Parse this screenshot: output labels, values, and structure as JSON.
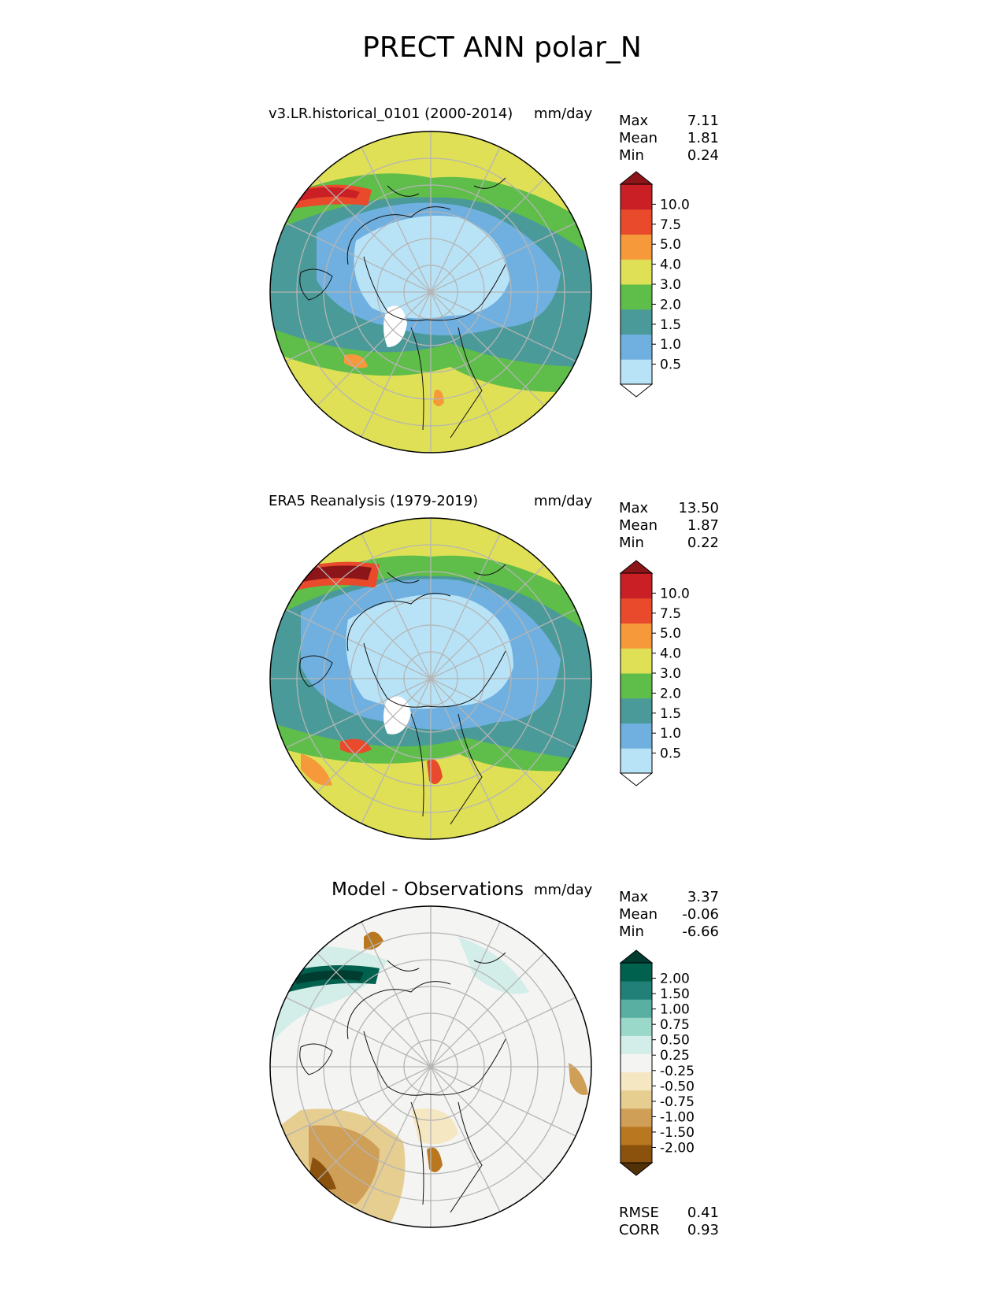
{
  "figure_title": "PRECT ANN polar_N",
  "colors": {
    "prect": [
      "#ffffff",
      "#b8e3f7",
      "#6fb0e0",
      "#4a9a9a",
      "#5fbd4a",
      "#dfe055",
      "#f6993b",
      "#e84a2b",
      "#c91f25",
      "#8c1519"
    ],
    "diff": [
      "#523109",
      "#8a520d",
      "#b9781f",
      "#cf9f58",
      "#e6cd90",
      "#f6e7c3",
      "#f4f4f2",
      "#d3ede8",
      "#9ad8ca",
      "#59b0a2",
      "#218077",
      "#00614f",
      "#003c30"
    ],
    "ocean_light": "#b8e3f7",
    "neutral": "#f4f4f2"
  },
  "panels": [
    {
      "title": "v3.LR.historical_0101 (2000-2014)",
      "units": "mm/day",
      "stats": [
        {
          "label": "Max",
          "value": "7.11"
        },
        {
          "label": "Mean",
          "value": "1.81"
        },
        {
          "label": "Min",
          "value": "0.24"
        }
      ],
      "colorbar": {
        "ticks": [
          "10.0",
          "7.5",
          "5.0",
          "4.0",
          "3.0",
          "2.0",
          "1.5",
          "1.0",
          "0.5"
        ]
      }
    },
    {
      "title": "ERA5 Reanalysis (1979-2019)",
      "units": "mm/day",
      "stats": [
        {
          "label": "Max",
          "value": "13.50"
        },
        {
          "label": "Mean",
          "value": "1.87"
        },
        {
          "label": "Min",
          "value": "0.22"
        }
      ],
      "colorbar": {
        "ticks": [
          "10.0",
          "7.5",
          "5.0",
          "4.0",
          "3.0",
          "2.0",
          "1.5",
          "1.0",
          "0.5"
        ]
      }
    },
    {
      "title": "Model - Observations",
      "units": "mm/day",
      "stats": [
        {
          "label": "Max",
          "value": "3.37"
        },
        {
          "label": "Mean",
          "value": "-0.06"
        },
        {
          "label": "Min",
          "value": "-6.66"
        }
      ],
      "colorbar": {
        "ticks": [
          "2.00",
          "1.50",
          "1.00",
          "0.75",
          "0.50",
          "0.25",
          "-0.25",
          "-0.50",
          "-0.75",
          "-1.00",
          "-1.50",
          "-2.00"
        ]
      },
      "metrics": [
        {
          "label": "RMSE",
          "value": "0.41"
        },
        {
          "label": "CORR",
          "value": "0.93"
        }
      ]
    }
  ]
}
